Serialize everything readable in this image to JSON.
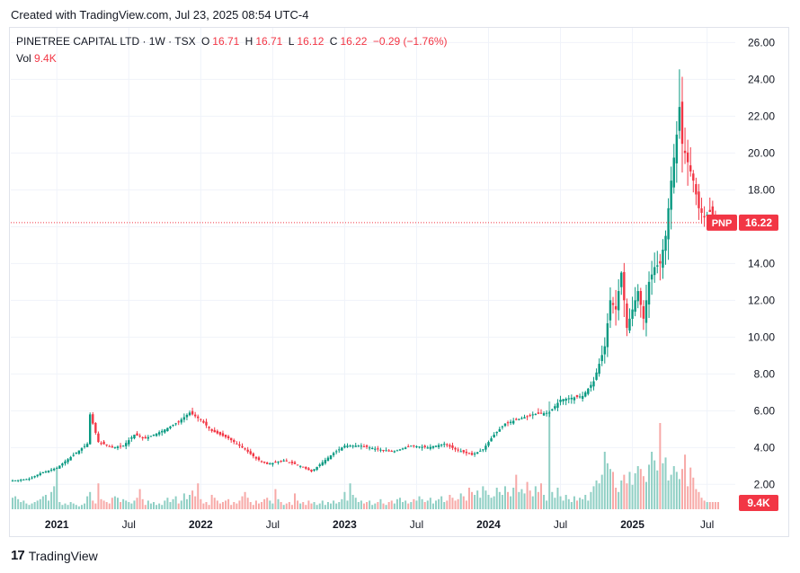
{
  "header": {
    "created_text": "Created with TradingView.com, Jul 23, 2025 08:54 UTC-4"
  },
  "legend": {
    "symbol": "PINETREE CAPITAL LTD · 1W · TSX",
    "o_label": "O",
    "o_value": "16.71",
    "h_label": "H",
    "h_value": "16.71",
    "l_label": "L",
    "l_value": "16.12",
    "c_label": "C",
    "c_value": "16.22",
    "change": "−0.29 (−1.76%)",
    "vol_label": "Vol",
    "vol_value": "9.4K"
  },
  "footer": {
    "logo_text": "TradingView",
    "logo_mark": "17"
  },
  "colors": {
    "up": "#089981",
    "down": "#f23645",
    "grid": "#f0f3fa",
    "axis_text": "#131722",
    "up_vol": "#8fcfc4",
    "down_vol": "#f7a9a7"
  },
  "chart_data": {
    "type": "candlestick",
    "title": "PINETREE CAPITAL LTD · 1W · TSX",
    "y_axis": {
      "ylim": [
        0.6,
        26.8
      ],
      "ticks": [
        "26.00",
        "24.00",
        "22.00",
        "20.00",
        "18.00",
        "16.00",
        "14.00",
        "12.00",
        "10.00",
        "8.00",
        "6.00",
        "4.00",
        "2.00"
      ]
    },
    "x_axis": {
      "ticks": [
        "2021",
        "Jul",
        "2022",
        "Jul",
        "2023",
        "Jul",
        "2024",
        "Jul",
        "2025",
        "Jul"
      ],
      "tick_weeks": [
        16,
        42,
        68,
        94,
        120,
        146,
        172,
        198,
        224,
        251
      ]
    },
    "last_price": {
      "symbol_label": "PNP",
      "value": "16.22",
      "price": 16.22
    },
    "volume_badge": "9.4K",
    "anchors": [
      [
        0,
        2.2
      ],
      [
        6,
        2.3
      ],
      [
        10,
        2.6
      ],
      [
        16,
        2.9
      ],
      [
        22,
        3.6
      ],
      [
        27,
        4.2
      ],
      [
        28,
        5.8
      ],
      [
        31,
        4.3
      ],
      [
        36,
        4.0
      ],
      [
        40,
        4.1
      ],
      [
        44,
        4.7
      ],
      [
        48,
        4.5
      ],
      [
        54,
        4.9
      ],
      [
        60,
        5.4
      ],
      [
        64,
        5.9
      ],
      [
        68,
        5.5
      ],
      [
        72,
        4.9
      ],
      [
        78,
        4.5
      ],
      [
        84,
        3.9
      ],
      [
        88,
        3.4
      ],
      [
        92,
        3.1
      ],
      [
        98,
        3.3
      ],
      [
        104,
        3.0
      ],
      [
        108,
        2.7
      ],
      [
        112,
        3.2
      ],
      [
        116,
        3.7
      ],
      [
        120,
        4.1
      ],
      [
        126,
        4.1
      ],
      [
        132,
        3.9
      ],
      [
        138,
        3.8
      ],
      [
        144,
        4.1
      ],
      [
        150,
        4.0
      ],
      [
        156,
        4.2
      ],
      [
        160,
        3.9
      ],
      [
        166,
        3.6
      ],
      [
        170,
        3.9
      ],
      [
        174,
        4.7
      ],
      [
        178,
        5.3
      ],
      [
        184,
        5.6
      ],
      [
        188,
        5.8
      ],
      [
        194,
        5.9
      ],
      [
        198,
        6.6
      ],
      [
        202,
        6.7
      ],
      [
        206,
        6.8
      ],
      [
        210,
        7.6
      ],
      [
        214,
        9.5
      ],
      [
        216,
        12.0
      ],
      [
        218,
        11.5
      ],
      [
        220,
        13.5
      ],
      [
        222,
        10.5
      ],
      [
        224,
        11.5
      ],
      [
        226,
        12.5
      ],
      [
        228,
        11.0
      ],
      [
        230,
        13.0
      ],
      [
        232,
        13.8
      ],
      [
        234,
        14.0
      ],
      [
        236,
        15.5
      ],
      [
        238,
        18.5
      ],
      [
        240,
        21.0
      ],
      [
        241,
        22.5
      ],
      [
        242,
        20.5
      ],
      [
        243,
        20.0
      ],
      [
        244,
        19.5
      ],
      [
        246,
        18.5
      ],
      [
        248,
        17.0
      ],
      [
        250,
        16.5
      ],
      [
        252,
        16.8
      ],
      [
        254,
        16.22
      ]
    ],
    "volume_values": [
      0.8,
      0.9,
      0.7,
      0.5,
      0.6,
      0.4,
      0.3,
      0.4,
      0.5,
      0.6,
      0.7,
      0.9,
      1.0,
      0.6,
      1.2,
      1.6,
      2.8,
      0.5,
      0.3,
      0.4,
      0.3,
      0.5,
      0.4,
      0.3,
      0.2,
      0.3,
      0.4,
      0.9,
      1.2,
      0.6,
      0.4,
      1.8,
      0.7,
      0.6,
      0.5,
      0.4,
      0.8,
      0.9,
      0.8,
      0.5,
      0.7,
      0.6,
      0.5,
      0.4,
      0.6,
      0.8,
      1.4,
      0.7,
      0.3,
      0.6,
      0.4,
      0.5,
      0.3,
      0.4,
      0.3,
      0.6,
      0.8,
      0.5,
      0.7,
      0.9,
      0.4,
      0.6,
      1.1,
      0.7,
      1.0,
      1.3,
      0.9,
      1.8,
      0.7,
      0.4,
      0.5,
      0.3,
      1.0,
      0.8,
      0.6,
      0.4,
      0.5,
      0.6,
      0.7,
      0.3,
      0.5,
      0.4,
      0.6,
      0.9,
      1.2,
      0.8,
      0.5,
      0.3,
      0.6,
      0.4,
      0.5,
      0.7,
      0.8,
      0.6,
      0.4,
      1.4,
      0.7,
      0.5,
      0.3,
      0.4,
      0.5,
      0.3,
      1.1,
      0.6,
      0.4,
      0.5,
      0.3,
      0.6,
      0.4,
      0.5,
      0.3,
      0.4,
      0.6,
      0.3,
      0.5,
      0.4,
      0.6,
      0.4,
      0.5,
      0.7,
      1.2,
      0.6,
      1.8,
      1.0,
      0.8,
      0.5,
      0.6,
      0.4,
      0.5,
      0.6,
      0.3,
      0.4,
      0.5,
      0.7,
      0.4,
      0.3,
      0.5,
      0.6,
      0.4,
      0.7,
      0.8,
      0.5,
      0.6,
      0.4,
      0.5,
      0.7,
      0.6,
      0.9,
      0.7,
      0.5,
      0.6,
      0.8,
      0.4,
      0.6,
      0.7,
      0.9,
      0.5,
      0.6,
      1.0,
      0.8,
      0.6,
      0.7,
      1.1,
      0.9,
      0.6,
      1.5,
      1.2,
      1.0,
      1.3,
      0.8,
      1.6,
      1.3,
      1.0,
      0.8,
      0.9,
      1.5,
      1.2,
      1.0,
      1.6,
      1.2,
      0.9,
      1.5,
      2.4,
      1.2,
      1.4,
      1.1,
      1.9,
      1.3,
      0.9,
      1.6,
      1.2,
      1.8,
      1.0,
      0.6,
      7.5,
      1.2,
      0.8,
      1.5,
      0.9,
      0.6,
      1.0,
      0.7,
      0.5,
      0.9,
      0.6,
      0.8,
      0.7,
      1.0,
      0.6,
      1.2,
      1.6,
      2.0,
      1.8,
      2.4,
      4.0,
      3.2,
      2.8,
      2.6,
      1.5,
      1.2,
      2.0,
      2.4,
      1.8,
      2.6,
      1.7,
      2.5,
      3.0,
      2.8,
      2.3,
      1.9,
      3.1,
      4.0,
      3.4,
      2.7,
      6.0,
      3.2,
      3.6,
      2.0,
      2.4,
      3.0,
      2.6,
      2.1,
      2.8,
      3.8,
      1.6,
      2.9,
      2.2,
      1.4,
      1.2,
      0.8,
      0.6
    ]
  }
}
